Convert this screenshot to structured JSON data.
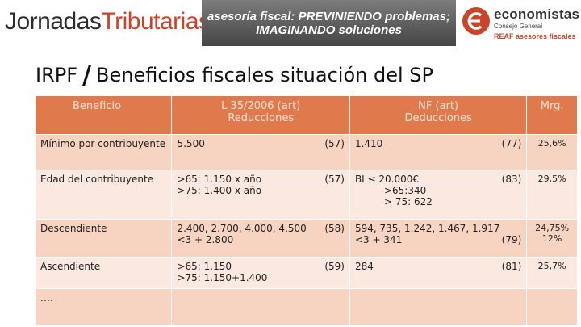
{
  "header": {
    "brand_part1": "Jornadas",
    "brand_part2": "Tributarias",
    "banner_line1": "asesoría fiscal: PREVINIENDO problemas;",
    "banner_line2": "IMAGINANDO soluciones",
    "logo_name": "economistas",
    "logo_sub": "Consejo General",
    "logo_tag": "REAF asesores fiscales"
  },
  "title": {
    "left": "IRPF",
    "slash": "/",
    "right": "Beneficios fiscales situación del SP"
  },
  "table": {
    "headers": {
      "beneficio": "Beneficio",
      "ley": "L 35/2006 (art)\nReducciones",
      "nf": "NF (art)\nDeducciones",
      "mrg": "Mrg."
    },
    "rows": [
      {
        "beneficio": "Mínimo por contribuyente",
        "ley_value": "5.500",
        "ley_art": "(57)",
        "nf_value": "1.410",
        "nf_art": "(77)",
        "mrg": "25,6%"
      },
      {
        "beneficio": "Edad del contribuyente",
        "ley_value": ">65: 1.150 x año\n>75: 1.400 x año",
        "ley_art": "(57)",
        "nf_value": "BI ≤ 20.000€",
        "nf_value_extra": ">65:340\n> 75: 622",
        "nf_art": "(83)",
        "mrg": "29,5%"
      },
      {
        "beneficio": "Descendiente",
        "ley_value": "2.400, 2.700, 4.000, 4.500\n<3 + 2.800",
        "ley_art": "(58)",
        "nf_value": "594, 735, 1.242, 1.467, 1.917\n<3 + 341",
        "nf_art": "(79)",
        "mrg": "24,75%\n12%"
      },
      {
        "beneficio": "Ascendiente",
        "ley_value": ">65: 1.150\n>75: 1.150+1.400",
        "ley_art": "(59)",
        "nf_value": "284",
        "nf_art": "(81)",
        "mrg": "25,7%"
      },
      {
        "beneficio": "….",
        "ley_value": "",
        "ley_art": "",
        "nf_value": "",
        "nf_art": "",
        "mrg": ""
      }
    ]
  },
  "colors": {
    "header_bg": "#e07a4d",
    "row_dark": "#f7d3c1",
    "row_light": "#fbe8e0",
    "brand_accent": "#c8452b"
  }
}
